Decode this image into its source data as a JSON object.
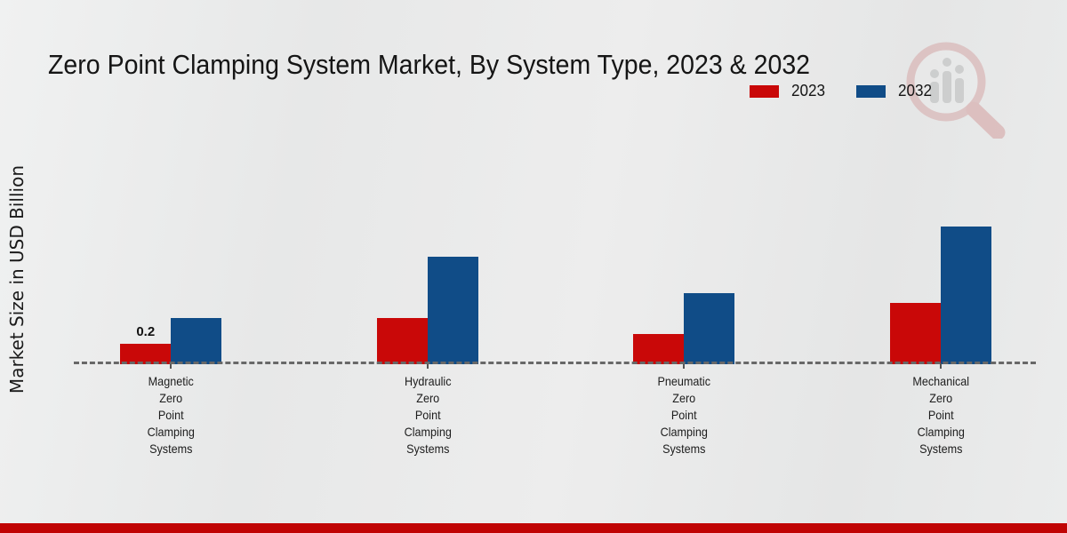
{
  "title": "Zero Point Clamping System Market, By System Type, 2023 & 2032",
  "y_axis_label": "Market Size in USD Billion",
  "legend": {
    "position": "top-right",
    "items": [
      {
        "label": "2023",
        "color": "#c90808"
      },
      {
        "label": "2032",
        "color": "#104c87"
      }
    ]
  },
  "watermark_icon": "magnifier-bar-chart-logo-icon",
  "footer_bar_color": "#c00404",
  "colors": {
    "series_2023": "#c90808",
    "series_2032": "#104c87",
    "background": "#e9eaea",
    "baseline": "#686868",
    "text": "#1a1a1a"
  },
  "chart_data": {
    "type": "bar",
    "title": "Zero Point Clamping System Market, By System Type, 2023 & 2032",
    "xlabel": "",
    "ylabel": "Market Size in USD Billion",
    "categories": [
      "Magnetic Zero Point Clamping Systems",
      "Hydraulic Zero Point Clamping Systems",
      "Pneumatic Zero Point Clamping Systems",
      "Mechanical Zero Point Clamping Systems"
    ],
    "series": [
      {
        "name": "2023",
        "color": "#c90808",
        "values": [
          0.2,
          0.45,
          0.3,
          0.6
        ]
      },
      {
        "name": "2032",
        "color": "#104c87",
        "values": [
          0.45,
          1.05,
          0.7,
          1.35
        ]
      }
    ],
    "annotations": [
      {
        "series_index": 0,
        "category_index": 0,
        "text": "0.2"
      }
    ],
    "ylim": [
      0,
      1.5
    ],
    "grid": false,
    "axis_style": "dashed-baseline-only",
    "legend_position": "top-right"
  }
}
